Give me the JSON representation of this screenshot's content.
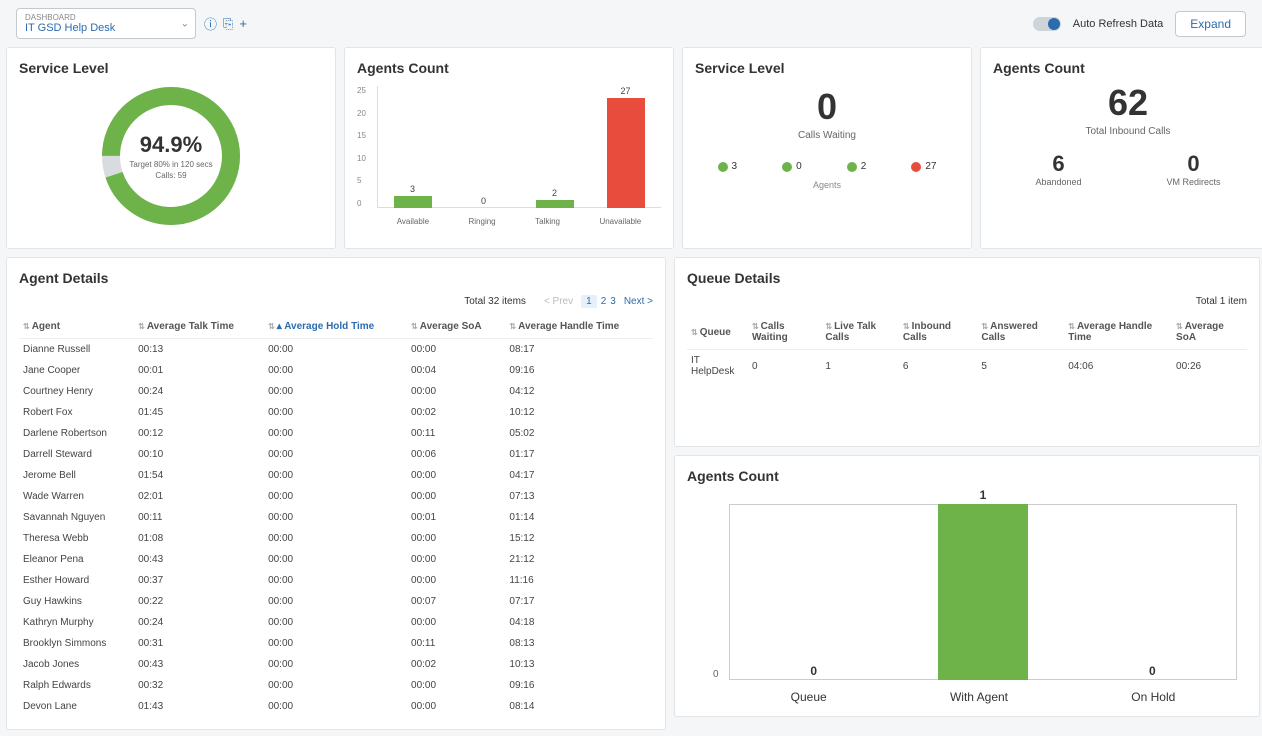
{
  "topbar": {
    "select_label": "DASHBOARD",
    "select_value": "IT GSD Help Desk",
    "toggle_label": "Auto Refresh Data",
    "expand_label": "Expand"
  },
  "colors": {
    "green": "#6eb24a",
    "red": "#e74c3c",
    "grey": "#d9dcde",
    "link": "#2b6cad"
  },
  "service_level_donut": {
    "title": "Service Level",
    "percent": "94.9%",
    "target_line": "Target 80% in 120 secs",
    "calls_line": "Calls: 59",
    "value_pct": 94.9,
    "fg_color": "#6eb24a",
    "bg_color": "#d9dcde",
    "stroke_width": 18
  },
  "agents_count_bar": {
    "title": "Agents Count",
    "ylim": [
      0,
      30
    ],
    "yticks": [
      "25",
      "20",
      "15",
      "10",
      "5",
      "0"
    ],
    "bars": [
      {
        "label": "Available",
        "value": 3,
        "color": "#6eb24a"
      },
      {
        "label": "Ringing",
        "value": 0,
        "color": "#6eb24a"
      },
      {
        "label": "Talking",
        "value": 2,
        "color": "#6eb24a"
      },
      {
        "label": "Unavailable",
        "value": 27,
        "color": "#e74c3c"
      }
    ]
  },
  "service_level_num": {
    "title": "Service Level",
    "big_value": "0",
    "big_label": "Calls Waiting",
    "dots": [
      {
        "value": "3",
        "color": "#6eb24a"
      },
      {
        "value": "0",
        "color": "#6eb24a"
      },
      {
        "value": "2",
        "color": "#6eb24a"
      },
      {
        "value": "27",
        "color": "#e74c3c"
      }
    ],
    "sublabel": "Agents"
  },
  "agents_count_num": {
    "title": "Agents Count",
    "big_value": "62",
    "big_label": "Total Inbound Calls",
    "sub": [
      {
        "value": "6",
        "label": "Abandoned"
      },
      {
        "value": "0",
        "label": "VM Redirects"
      }
    ]
  },
  "agent_details": {
    "title": "Agent Details",
    "total_label": "Total 32 items",
    "pager": {
      "prev": "< Prev",
      "pages": [
        "1",
        "2",
        "3"
      ],
      "next": "Next >",
      "active": 0
    },
    "columns": [
      "Agent",
      "Average Talk Time",
      "Average Hold Time",
      "Average SoA",
      "Average Handle Time"
    ],
    "sorted_col": 2,
    "rows": [
      [
        "Dianne Russell",
        "00:13",
        "00:00",
        "00:00",
        "08:17"
      ],
      [
        "Jane Cooper",
        "00:01",
        "00:00",
        "00:04",
        "09:16"
      ],
      [
        "Courtney Henry",
        "00:24",
        "00:00",
        "00:00",
        "04:12"
      ],
      [
        "Robert Fox",
        "01:45",
        "00:00",
        "00:02",
        "10:12"
      ],
      [
        "Darlene Robertson",
        "00:12",
        "00:00",
        "00:11",
        "05:02"
      ],
      [
        "Darrell Steward",
        "00:10",
        "00:00",
        "00:06",
        "01:17"
      ],
      [
        "Jerome Bell",
        "01:54",
        "00:00",
        "00:00",
        "04:17"
      ],
      [
        "Wade Warren",
        "02:01",
        "00:00",
        "00:00",
        "07:13"
      ],
      [
        "Savannah Nguyen",
        "00:11",
        "00:00",
        "00:01",
        "01:14"
      ],
      [
        "Theresa Webb",
        "01:08",
        "00:00",
        "00:00",
        "15:12"
      ],
      [
        "Eleanor Pena",
        "00:43",
        "00:00",
        "00:00",
        "21:12"
      ],
      [
        "Esther Howard",
        "00:37",
        "00:00",
        "00:00",
        "11:16"
      ],
      [
        "Guy Hawkins",
        "00:22",
        "00:00",
        "00:07",
        "07:17"
      ],
      [
        "Kathryn Murphy",
        "00:24",
        "00:00",
        "00:00",
        "04:18"
      ],
      [
        "Brooklyn Simmons",
        "00:31",
        "00:00",
        "00:11",
        "08:13"
      ],
      [
        "Jacob Jones",
        "00:43",
        "00:00",
        "00:02",
        "10:13"
      ],
      [
        "Ralph Edwards",
        "00:32",
        "00:00",
        "00:00",
        "09:16"
      ],
      [
        "Devon Lane",
        "01:43",
        "00:00",
        "00:00",
        "08:14"
      ]
    ]
  },
  "queue_details": {
    "title": "Queue Details",
    "total_label": "Total 1 item",
    "columns": [
      "Queue",
      "Calls Waiting",
      "Live Talk Calls",
      "Inbound Calls",
      "Answered Calls",
      "Average Handle Time",
      "Average SoA"
    ],
    "rows": [
      [
        "IT HelpDesk",
        "0",
        "1",
        "6",
        "5",
        "04:06",
        "00:26"
      ]
    ]
  },
  "agents_count_bottom": {
    "title": "Agents Count",
    "ylim": [
      0,
      1
    ],
    "yticks": [
      "0"
    ],
    "bars": [
      {
        "label": "Queue",
        "value": 0,
        "color": "#6eb24a"
      },
      {
        "label": "With Agent",
        "value": 1,
        "color": "#6eb24a"
      },
      {
        "label": "On Hold",
        "value": 0,
        "color": "#6eb24a"
      }
    ]
  }
}
